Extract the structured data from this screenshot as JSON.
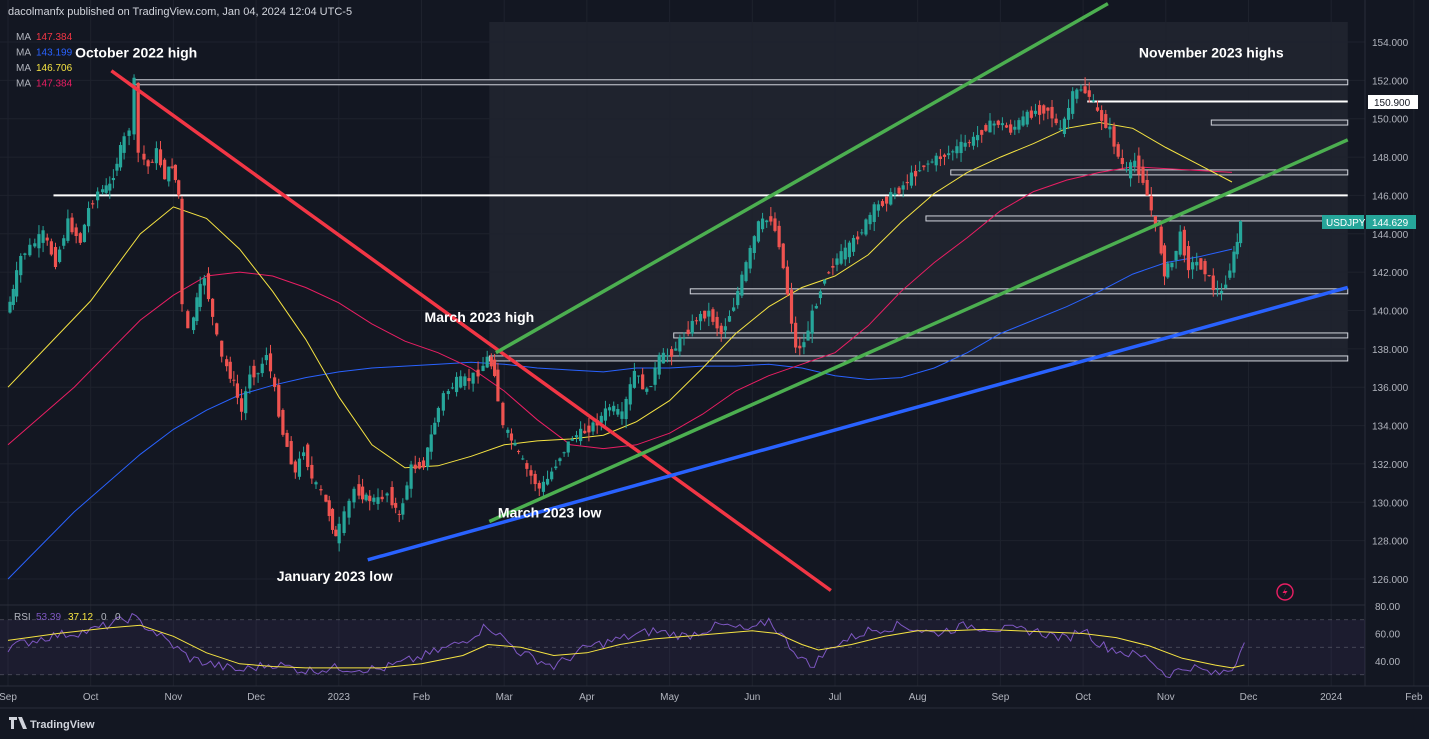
{
  "header": {
    "published": "dacolmanfx published on TradingView.com, Jan 04, 2024 12:04 UTC-5"
  },
  "ma_legend": [
    {
      "label": "MA",
      "value": "147.384",
      "color": "#f23645"
    },
    {
      "label": "MA",
      "value": "143.199",
      "color": "#2962ff"
    },
    {
      "label": "MA",
      "value": "146.706",
      "color": "#f5e342"
    },
    {
      "label": "MA",
      "value": "147.384",
      "color": "#e91e63"
    }
  ],
  "symbol_tag": {
    "symbol": "USDJPY",
    "price": "144.629",
    "price_value": 144.629,
    "color": "#26a69a"
  },
  "level_tag": {
    "price": "150.900",
    "price_value": 150.9
  },
  "chart_data": {
    "type": "line",
    "ylim": [
      125,
      155
    ],
    "y_ticks": [
      "126.000",
      "128.000",
      "130.000",
      "132.000",
      "134.000",
      "136.000",
      "138.000",
      "140.000",
      "142.000",
      "144.000",
      "146.000",
      "148.000",
      "150.000",
      "152.000",
      "154.000"
    ],
    "y_tick_values": [
      126,
      128,
      130,
      132,
      134,
      136,
      138,
      140,
      142,
      144,
      146,
      148,
      150,
      152,
      154
    ],
    "x_ticks": [
      "Sep",
      "Oct",
      "Nov",
      "Dec",
      "2023",
      "Feb",
      "Mar",
      "Apr",
      "May",
      "Jun",
      "Jul",
      "Aug",
      "Sep",
      "Oct",
      "Nov",
      "Dec",
      "2024",
      "Feb"
    ],
    "x_tick_months": [
      0,
      1,
      2,
      3,
      4,
      5,
      6,
      7,
      8,
      9,
      10,
      11,
      12,
      13,
      14,
      15,
      16,
      17
    ],
    "x_start": "2022-09-01",
    "annotations": [
      {
        "text": "October 2022 high",
        "month": 1.55,
        "price": 153.2
      },
      {
        "text": "November 2023 highs",
        "month": 14.55,
        "price": 153.2
      },
      {
        "text": "March 2023 high",
        "month": 5.7,
        "price": 139.4
      },
      {
        "text": "January 2023 low",
        "month": 3.95,
        "price": 125.9
      },
      {
        "text": "March 2023 low",
        "month": 6.55,
        "price": 129.2
      }
    ],
    "price_path": [
      [
        0.0,
        139.9
      ],
      [
        0.08,
        141.0
      ],
      [
        0.18,
        142.8
      ],
      [
        0.3,
        143.3
      ],
      [
        0.45,
        144.0
      ],
      [
        0.6,
        142.5
      ],
      [
        0.75,
        144.6
      ],
      [
        0.9,
        143.6
      ],
      [
        1.0,
        145.3
      ],
      [
        1.12,
        146.2
      ],
      [
        1.25,
        146.5
      ],
      [
        1.38,
        148.4
      ],
      [
        1.5,
        149.5
      ],
      [
        1.55,
        151.9
      ],
      [
        1.62,
        148.2
      ],
      [
        1.72,
        147.5
      ],
      [
        1.82,
        148.3
      ],
      [
        1.92,
        147.0
      ],
      [
        2.0,
        147.6
      ],
      [
        2.08,
        146.0
      ],
      [
        2.15,
        140.2
      ],
      [
        2.22,
        138.9
      ],
      [
        2.3,
        140.5
      ],
      [
        2.4,
        141.8
      ],
      [
        2.5,
        139.6
      ],
      [
        2.62,
        137.5
      ],
      [
        2.75,
        136.2
      ],
      [
        2.85,
        134.7
      ],
      [
        2.95,
        136.8
      ],
      [
        3.05,
        136.7
      ],
      [
        3.15,
        137.8
      ],
      [
        3.25,
        135.8
      ],
      [
        3.35,
        133.6
      ],
      [
        3.5,
        131.5
      ],
      [
        3.6,
        132.8
      ],
      [
        3.7,
        131.2
      ],
      [
        3.82,
        130.5
      ],
      [
        3.9,
        129.4
      ],
      [
        3.98,
        128.1
      ],
      [
        4.1,
        129.3
      ],
      [
        4.22,
        130.7
      ],
      [
        4.35,
        130.2
      ],
      [
        4.5,
        130.1
      ],
      [
        4.62,
        130.5
      ],
      [
        4.75,
        129.2
      ],
      [
        4.9,
        131.8
      ],
      [
        5.05,
        132.0
      ],
      [
        5.18,
        134.2
      ],
      [
        5.3,
        135.6
      ],
      [
        5.45,
        136.3
      ],
      [
        5.6,
        136.4
      ],
      [
        5.72,
        136.8
      ],
      [
        5.82,
        137.5
      ],
      [
        5.9,
        136.8
      ],
      [
        6.02,
        133.9
      ],
      [
        6.15,
        132.9
      ],
      [
        6.3,
        131.7
      ],
      [
        6.45,
        130.7
      ],
      [
        6.55,
        131.2
      ],
      [
        6.7,
        132.4
      ],
      [
        6.85,
        133.4
      ],
      [
        7.0,
        133.7
      ],
      [
        7.15,
        134.2
      ],
      [
        7.3,
        135.0
      ],
      [
        7.45,
        134.5
      ],
      [
        7.6,
        136.8
      ],
      [
        7.75,
        135.7
      ],
      [
        7.9,
        137.5
      ],
      [
        8.05,
        137.8
      ],
      [
        8.2,
        138.7
      ],
      [
        8.35,
        139.6
      ],
      [
        8.5,
        139.9
      ],
      [
        8.65,
        138.8
      ],
      [
        8.8,
        140.3
      ],
      [
        8.95,
        142.4
      ],
      [
        9.1,
        144.5
      ],
      [
        9.25,
        144.8
      ],
      [
        9.35,
        143.5
      ],
      [
        9.45,
        140.9
      ],
      [
        9.55,
        138.0
      ],
      [
        9.65,
        138.3
      ],
      [
        9.75,
        139.8
      ],
      [
        9.9,
        141.8
      ],
      [
        10.05,
        142.7
      ],
      [
        10.2,
        143.3
      ],
      [
        10.35,
        144.2
      ],
      [
        10.5,
        145.3
      ],
      [
        10.65,
        145.8
      ],
      [
        10.8,
        146.3
      ],
      [
        10.95,
        147.0
      ],
      [
        11.1,
        147.6
      ],
      [
        11.25,
        147.9
      ],
      [
        11.4,
        148.2
      ],
      [
        11.55,
        148.6
      ],
      [
        11.7,
        148.9
      ],
      [
        11.85,
        149.6
      ],
      [
        12.0,
        149.8
      ],
      [
        12.15,
        149.4
      ],
      [
        12.3,
        150.0
      ],
      [
        12.45,
        150.4
      ],
      [
        12.6,
        150.5
      ],
      [
        12.75,
        149.3
      ],
      [
        12.9,
        151.2
      ],
      [
        13.0,
        151.6
      ],
      [
        13.1,
        151.2
      ],
      [
        13.2,
        150.3
      ],
      [
        13.35,
        149.4
      ],
      [
        13.45,
        148.0
      ],
      [
        13.55,
        147.2
      ],
      [
        13.65,
        147.8
      ],
      [
        13.75,
        146.8
      ],
      [
        13.85,
        145.2
      ],
      [
        13.92,
        144.2
      ],
      [
        14.0,
        142.0
      ],
      [
        14.1,
        142.5
      ],
      [
        14.2,
        143.9
      ],
      [
        14.3,
        142.3
      ],
      [
        14.4,
        142.5
      ],
      [
        14.5,
        142.1
      ],
      [
        14.6,
        141.2
      ],
      [
        14.7,
        140.9
      ],
      [
        14.8,
        142.2
      ],
      [
        14.88,
        143.6
      ],
      [
        14.95,
        144.6
      ]
    ],
    "ma_yellow": [
      [
        0.0,
        136.0
      ],
      [
        1.0,
        140.5
      ],
      [
        1.6,
        144.0
      ],
      [
        2.0,
        145.4
      ],
      [
        2.4,
        144.8
      ],
      [
        2.8,
        143.2
      ],
      [
        3.2,
        141.0
      ],
      [
        3.6,
        138.5
      ],
      [
        4.0,
        135.5
      ],
      [
        4.4,
        133.0
      ],
      [
        4.8,
        131.8
      ],
      [
        5.2,
        131.9
      ],
      [
        5.6,
        132.4
      ],
      [
        6.0,
        133.0
      ],
      [
        6.4,
        133.2
      ],
      [
        6.8,
        133.3
      ],
      [
        7.2,
        133.5
      ],
      [
        7.6,
        134.2
      ],
      [
        8.0,
        135.3
      ],
      [
        8.4,
        137.0
      ],
      [
        8.8,
        138.8
      ],
      [
        9.2,
        140.2
      ],
      [
        9.6,
        141.2
      ],
      [
        10.0,
        141.8
      ],
      [
        10.4,
        142.9
      ],
      [
        10.8,
        144.6
      ],
      [
        11.2,
        146.1
      ],
      [
        11.6,
        147.2
      ],
      [
        12.0,
        148.0
      ],
      [
        12.4,
        148.7
      ],
      [
        12.8,
        149.5
      ],
      [
        13.2,
        149.8
      ],
      [
        13.6,
        149.5
      ],
      [
        14.0,
        148.5
      ],
      [
        14.4,
        147.6
      ],
      [
        14.8,
        146.7
      ]
    ],
    "ma_red": [
      [
        0.0,
        133.0
      ],
      [
        0.8,
        136.0
      ],
      [
        1.6,
        139.5
      ],
      [
        2.0,
        140.8
      ],
      [
        2.4,
        141.8
      ],
      [
        2.8,
        142.0
      ],
      [
        3.2,
        141.8
      ],
      [
        3.6,
        141.2
      ],
      [
        4.0,
        140.4
      ],
      [
        4.4,
        139.3
      ],
      [
        4.8,
        138.4
      ],
      [
        5.2,
        137.8
      ],
      [
        5.6,
        137.0
      ],
      [
        6.0,
        135.8
      ],
      [
        6.4,
        134.3
      ],
      [
        6.8,
        133.0
      ],
      [
        7.2,
        132.8
      ],
      [
        7.6,
        133.0
      ],
      [
        8.0,
        133.6
      ],
      [
        8.4,
        134.6
      ],
      [
        8.8,
        135.8
      ],
      [
        9.2,
        136.6
      ],
      [
        9.6,
        137.2
      ],
      [
        10.0,
        137.8
      ],
      [
        10.4,
        139.2
      ],
      [
        10.8,
        141.0
      ],
      [
        11.2,
        142.5
      ],
      [
        11.6,
        143.8
      ],
      [
        12.0,
        145.2
      ],
      [
        12.4,
        146.2
      ],
      [
        12.8,
        146.8
      ],
      [
        13.2,
        147.2
      ],
      [
        13.6,
        147.5
      ],
      [
        14.0,
        147.4
      ],
      [
        14.4,
        147.3
      ],
      [
        14.8,
        147.2
      ]
    ],
    "ma_blue": [
      [
        0.0,
        126.0
      ],
      [
        0.8,
        129.5
      ],
      [
        1.6,
        132.5
      ],
      [
        2.0,
        133.8
      ],
      [
        2.4,
        134.8
      ],
      [
        2.8,
        135.6
      ],
      [
        3.2,
        136.1
      ],
      [
        3.6,
        136.5
      ],
      [
        4.0,
        136.8
      ],
      [
        4.4,
        137.0
      ],
      [
        4.8,
        137.1
      ],
      [
        5.2,
        137.2
      ],
      [
        5.6,
        137.3
      ],
      [
        6.0,
        137.2
      ],
      [
        6.4,
        137.0
      ],
      [
        6.8,
        136.9
      ],
      [
        7.2,
        136.8
      ],
      [
        7.6,
        137.0
      ],
      [
        8.0,
        137.0
      ],
      [
        8.4,
        137.1
      ],
      [
        8.8,
        137.1
      ],
      [
        9.2,
        137.2
      ],
      [
        9.6,
        137.0
      ],
      [
        10.0,
        136.6
      ],
      [
        10.4,
        136.4
      ],
      [
        10.8,
        136.5
      ],
      [
        11.2,
        137.0
      ],
      [
        11.6,
        137.8
      ],
      [
        12.0,
        138.8
      ],
      [
        12.4,
        139.5
      ],
      [
        12.8,
        140.2
      ],
      [
        13.2,
        141.0
      ],
      [
        13.6,
        141.9
      ],
      [
        14.0,
        142.5
      ],
      [
        14.4,
        142.8
      ],
      [
        14.8,
        143.2
      ]
    ],
    "levels": [
      {
        "price": 151.9,
        "from": 1.52,
        "to": 16.2,
        "type": "box"
      },
      {
        "price": 150.9,
        "from": 13.05,
        "to": 16.2,
        "type": "line"
      },
      {
        "price": 149.8,
        "from": 14.55,
        "to": 16.2,
        "type": "box"
      },
      {
        "price": 147.2,
        "from": 11.4,
        "to": 16.2,
        "type": "box"
      },
      {
        "price": 146.0,
        "from": 0.55,
        "to": 16.2,
        "type": "line"
      },
      {
        "price": 144.8,
        "from": 11.1,
        "to": 16.2,
        "type": "box"
      },
      {
        "price": 141.0,
        "from": 8.25,
        "to": 16.2,
        "type": "box"
      },
      {
        "price": 138.7,
        "from": 8.05,
        "to": 16.2,
        "type": "box"
      },
      {
        "price": 137.5,
        "from": 5.82,
        "to": 16.2,
        "type": "box"
      }
    ],
    "trendlines": [
      {
        "color": "#f23645",
        "from": [
          1.25,
          152.5
        ],
        "to": [
          9.95,
          125.4
        ]
      },
      {
        "color": "#4caf50",
        "from": [
          5.9,
          137.8
        ],
        "to": [
          13.3,
          156.0
        ]
      },
      {
        "color": "#4caf50",
        "from": [
          5.82,
          129.0
        ],
        "to": [
          16.2,
          148.9
        ]
      },
      {
        "color": "#2962ff",
        "from": [
          4.35,
          127.0
        ],
        "to": [
          16.2,
          141.2
        ]
      }
    ],
    "channel_shade": {
      "from": 5.82,
      "to": 16.2
    },
    "rsi": {
      "label": "RSI",
      "value1": "53.39",
      "value2": "37.12",
      "extra": [
        "0",
        "0"
      ],
      "ylim": [
        20,
        80
      ],
      "y_ticks": [
        "80.00",
        "60.00",
        "40.00"
      ],
      "y_tick_values": [
        80,
        60,
        40
      ],
      "rsi_path": [
        [
          0.0,
          50
        ],
        [
          0.5,
          58
        ],
        [
          1.0,
          62
        ],
        [
          1.5,
          72
        ],
        [
          1.8,
          60
        ],
        [
          2.2,
          42
        ],
        [
          2.5,
          37
        ],
        [
          2.8,
          33
        ],
        [
          3.2,
          38
        ],
        [
          3.6,
          33
        ],
        [
          4.0,
          35
        ],
        [
          4.5,
          34
        ],
        [
          5.0,
          43
        ],
        [
          5.5,
          54
        ],
        [
          5.8,
          66
        ],
        [
          6.2,
          46
        ],
        [
          6.6,
          36
        ],
        [
          7.0,
          50
        ],
        [
          7.4,
          56
        ],
        [
          7.8,
          62
        ],
        [
          8.2,
          58
        ],
        [
          8.6,
          66
        ],
        [
          9.0,
          62
        ],
        [
          9.2,
          70
        ],
        [
          9.5,
          48
        ],
        [
          9.7,
          36
        ],
        [
          10.0,
          52
        ],
        [
          10.4,
          62
        ],
        [
          10.8,
          66
        ],
        [
          11.2,
          60
        ],
        [
          11.6,
          66
        ],
        [
          12.0,
          63
        ],
        [
          12.4,
          62
        ],
        [
          12.8,
          56
        ],
        [
          13.0,
          64
        ],
        [
          13.2,
          52
        ],
        [
          13.5,
          46
        ],
        [
          13.8,
          42
        ],
        [
          14.0,
          30
        ],
        [
          14.3,
          36
        ],
        [
          14.6,
          30
        ],
        [
          14.8,
          34
        ],
        [
          14.95,
          53.4
        ]
      ],
      "signal_path": [
        [
          0.0,
          55
        ],
        [
          0.6,
          60
        ],
        [
          1.2,
          64
        ],
        [
          1.6,
          66
        ],
        [
          2.0,
          58
        ],
        [
          2.4,
          46
        ],
        [
          2.8,
          38
        ],
        [
          3.2,
          36
        ],
        [
          3.6,
          35
        ],
        [
          4.0,
          35
        ],
        [
          4.5,
          35
        ],
        [
          5.0,
          38
        ],
        [
          5.5,
          44
        ],
        [
          5.8,
          52
        ],
        [
          6.2,
          50
        ],
        [
          6.6,
          44
        ],
        [
          7.0,
          46
        ],
        [
          7.4,
          52
        ],
        [
          7.8,
          56
        ],
        [
          8.2,
          58
        ],
        [
          8.6,
          60
        ],
        [
          9.0,
          62
        ],
        [
          9.3,
          60
        ],
        [
          9.6,
          52
        ],
        [
          9.8,
          48
        ],
        [
          10.2,
          52
        ],
        [
          10.6,
          58
        ],
        [
          11.0,
          62
        ],
        [
          11.4,
          62
        ],
        [
          11.8,
          63
        ],
        [
          12.2,
          62
        ],
        [
          12.6,
          61
        ],
        [
          13.0,
          60
        ],
        [
          13.4,
          57
        ],
        [
          13.8,
          51
        ],
        [
          14.2,
          42
        ],
        [
          14.6,
          37
        ],
        [
          14.8,
          35
        ],
        [
          14.95,
          37.1
        ]
      ]
    }
  },
  "footer": {
    "brand": "TradingView"
  }
}
